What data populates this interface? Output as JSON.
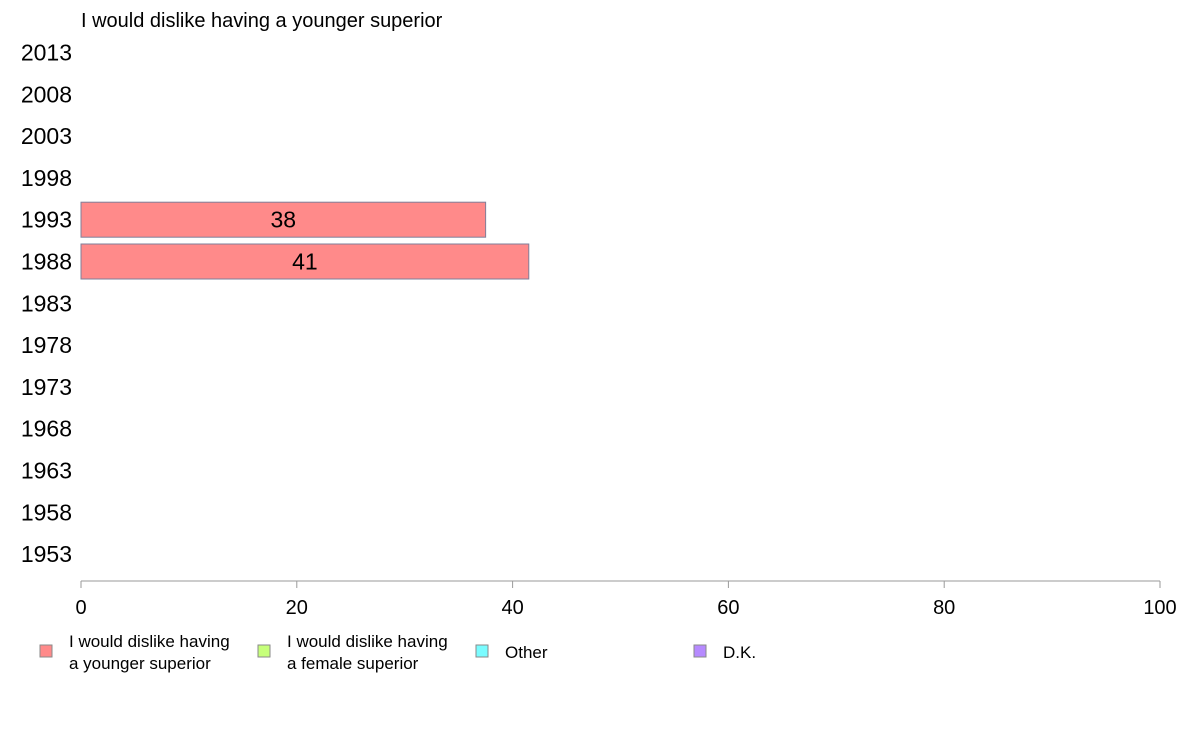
{
  "chart_data": {
    "type": "bar",
    "orientation": "horizontal",
    "title": "I would dislike having a younger superior",
    "categories": [
      "2013",
      "2008",
      "2003",
      "1998",
      "1993",
      "1988",
      "1983",
      "1978",
      "1973",
      "1968",
      "1963",
      "1958",
      "1953"
    ],
    "series": [
      {
        "name": "I would dislike having a younger superior",
        "color": "#ff8a8a",
        "values": [
          null,
          null,
          null,
          null,
          37.5,
          41.5,
          null,
          null,
          null,
          null,
          null,
          null,
          null
        ],
        "labels": [
          "",
          "",
          "",
          "",
          "38",
          "41",
          "",
          "",
          "",
          "",
          "",
          "",
          ""
        ]
      }
    ],
    "xlim": [
      0,
      100
    ],
    "xticks": [
      "0",
      "20",
      "40",
      "60",
      "80",
      "100"
    ],
    "grid": false,
    "legend": {
      "placement": "bottom",
      "items": [
        {
          "line1": "I would dislike having",
          "line2": "a younger superior",
          "color": "#ff8a8a"
        },
        {
          "line1": "I would dislike having",
          "line2": "a female superior",
          "color": "#c6ff7a"
        },
        {
          "line1": "Other",
          "line2": "",
          "color": "#7afcff"
        },
        {
          "line1": "D.K.",
          "line2": "",
          "color": "#b68aff"
        }
      ]
    }
  }
}
